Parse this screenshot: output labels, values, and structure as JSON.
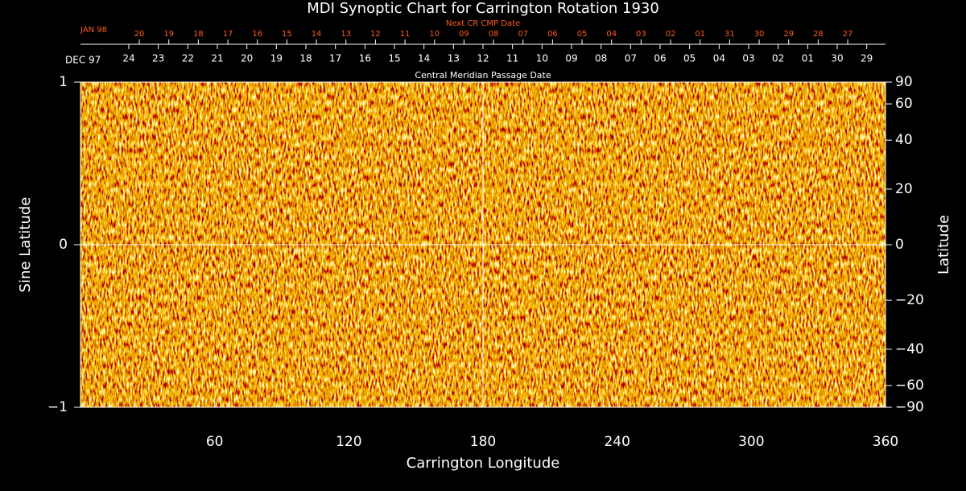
{
  "chart_data": {
    "type": "synoptic_map",
    "title": "MDI Synoptic Chart for Carrington Rotation 1930",
    "xlabel": "Carrington Longitude",
    "ylabel": "Sine Latitude",
    "y2label": "Latitude",
    "xlim": [
      0,
      360
    ],
    "xticks": [
      60,
      120,
      180,
      240,
      300,
      360
    ],
    "ylim": [
      -1,
      1
    ],
    "yticks": [
      {
        "value": -1,
        "label": "−1"
      },
      0,
      1
    ],
    "y2lim": [
      -90,
      90
    ],
    "y2scale": "sine",
    "y2ticks": [
      90,
      60,
      40,
      20,
      0,
      {
        "value": -20,
        "label": "−20"
      },
      {
        "value": -40,
        "label": "−40"
      },
      {
        "value": -60,
        "label": "−60"
      },
      {
        "value": -90,
        "label": "−90"
      }
    ],
    "x2title": "Central Meridian Passage Date",
    "x2start": "DEC 97",
    "x2ticks": [
      {
        "value": 21.6,
        "label": "24"
      },
      {
        "value": 34.8,
        "label": "23"
      },
      {
        "value": 48,
        "label": "22"
      },
      {
        "value": 61.2,
        "label": "21"
      },
      {
        "value": 74.4,
        "label": "20"
      },
      {
        "value": 87.6,
        "label": "19"
      },
      {
        "value": 100.8,
        "label": "18"
      },
      {
        "value": 114,
        "label": "17"
      },
      {
        "value": 127.2,
        "label": "16"
      },
      {
        "value": 140.4,
        "label": "15"
      },
      {
        "value": 153.6,
        "label": "14"
      },
      {
        "value": 166.8,
        "label": "13"
      },
      {
        "value": 180,
        "label": "12"
      },
      {
        "value": 193.2,
        "label": "11"
      },
      {
        "value": 206.4,
        "label": "10"
      },
      {
        "value": 219.6,
        "label": "09"
      },
      {
        "value": 232.8,
        "label": "08"
      },
      {
        "value": 246,
        "label": "07"
      },
      {
        "value": 259.2,
        "label": "06"
      },
      {
        "value": 272.4,
        "label": "05"
      },
      {
        "value": 285.6,
        "label": "04"
      },
      {
        "value": 298.8,
        "label": "03"
      },
      {
        "value": 312,
        "label": "02"
      },
      {
        "value": 325.2,
        "label": "01"
      },
      {
        "value": 338.4,
        "label": "30"
      },
      {
        "value": 351.6,
        "label": "29"
      }
    ],
    "x3title": "Next CR CMP Date",
    "x3start": "JAN 98",
    "x3color": "#ff5a1e",
    "x3ticks": [
      {
        "value": 26.3,
        "label": "20"
      },
      {
        "value": 39.5,
        "label": "19"
      },
      {
        "value": 52.7,
        "label": "18"
      },
      {
        "value": 65.9,
        "label": "17"
      },
      {
        "value": 79.1,
        "label": "16"
      },
      {
        "value": 92.3,
        "label": "15"
      },
      {
        "value": 105.5,
        "label": "14"
      },
      {
        "value": 118.7,
        "label": "13"
      },
      {
        "value": 131.9,
        "label": "12"
      },
      {
        "value": 145.1,
        "label": "11"
      },
      {
        "value": 158.3,
        "label": "10"
      },
      {
        "value": 171.5,
        "label": "09"
      },
      {
        "value": 184.7,
        "label": "08"
      },
      {
        "value": 197.9,
        "label": "07"
      },
      {
        "value": 211.1,
        "label": "06"
      },
      {
        "value": 224.3,
        "label": "05"
      },
      {
        "value": 237.5,
        "label": "04"
      },
      {
        "value": 250.7,
        "label": "03"
      },
      {
        "value": 263.9,
        "label": "02"
      },
      {
        "value": 277.1,
        "label": "01"
      },
      {
        "value": 290.3,
        "label": "31"
      },
      {
        "value": 303.5,
        "label": "30"
      },
      {
        "value": 316.7,
        "label": "29"
      },
      {
        "value": 329.9,
        "label": "28"
      },
      {
        "value": 343.1,
        "label": "27"
      }
    ]
  }
}
